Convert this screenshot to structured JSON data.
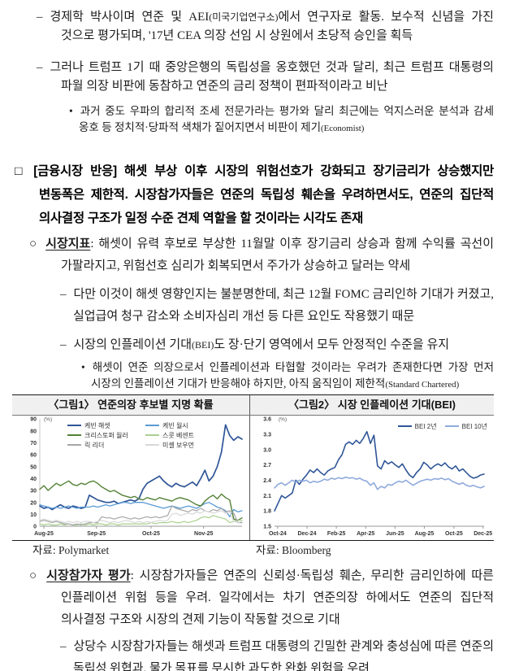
{
  "content": {
    "para1": {
      "marker": "–",
      "segments": [
        {
          "t": "경제학 박사이며 연준 및 AEI",
          "s": ""
        },
        {
          "t": "(미국기업연구소)",
          "s": "sm"
        },
        {
          "t": "에서 연구자로 활동. 보수적 신념을 가진 것으로 평가되며, '17년 CEA 의장 선임 시 상원에서 초당적 승인을 획득",
          "s": ""
        }
      ]
    },
    "para2": {
      "marker": "–",
      "segments": [
        {
          "t": "그러나 트럼프 1기 때 중앙은행의 독립성을 옹호했던 것과 달리, 최근 트럼프 대통령의 파월 의장 비판에 동참하고 연준의 금리 정책이 편파적이라고 비난",
          "s": ""
        }
      ]
    },
    "bullet1": {
      "marker": "•",
      "segments": [
        {
          "t": "과거 중도 우파의 합리적 조세 전문가라는 평가와 달리 최근에는 억지스러운 분석과 감세 옹호 등 정치적·당파적 색채가 짙어지면서 비판이 제기",
          "s": ""
        },
        {
          "t": "(Economist)",
          "s": "sm"
        }
      ]
    },
    "heading": {
      "marker": "□",
      "segments": [
        {
          "t": "[금융시장 반응] 해셋 부상 이후 시장의 위험선호가 강화되고 장기금리가 상승했지만 변동폭은 제한적. 시장참가자들은 연준의 독립성 훼손을 우려하면서도, 연준의 집단적 의사결정 구조가 일정 수준 견제 역할을 할 것이라는 시각도 존재",
          "s": ""
        }
      ]
    },
    "circle1": {
      "marker": "○",
      "segments": [
        {
          "t": "시장지표",
          "s": "bu"
        },
        {
          "t": ": 해셋이 유력 후보로 부상한 11월말 이후 장기금리 상승과 함께 수익률 곡선이 가팔라지고, 위험선호 심리가 회복되면서 주가가 상승하고 달러는 약세",
          "s": ""
        }
      ]
    },
    "dash3": {
      "marker": "–",
      "segments": [
        {
          "t": "다만 이것이 해셋 영향인지는 불분명한데, 최근 12월 FOMC 금리인하 기대가 커졌고, 실업급여 청구 감소와 소비자심리 개선 등 다른 요인도 작용했기 때문",
          "s": ""
        }
      ]
    },
    "dash4": {
      "marker": "–",
      "segments": [
        {
          "t": "시장의 인플레이션 기대",
          "s": ""
        },
        {
          "t": "(BEI)",
          "s": "sm"
        },
        {
          "t": "도 장·단기 영역에서 모두 안정적인 수준을 유지",
          "s": ""
        }
      ]
    },
    "bullet2": {
      "marker": "•",
      "segments": [
        {
          "t": "해셋이 연준 의장으로서 인플레이션과 타협할 것이라는 우려가 존재한다면 가장 먼저 시장의 인플레이션 기대가 반응해야 하지만, 아직 움직임이 제한적",
          "s": ""
        },
        {
          "t": "(Standard Chartered)",
          "s": "sm"
        }
      ]
    },
    "circle2": {
      "marker": "○",
      "segments": [
        {
          "t": "시장참가자 평가",
          "s": "bu"
        },
        {
          "t": ": 시장참가자들은 연준의 신뢰성·독립성 훼손, 무리한 금리인하에 따른 인플레이션 위험 등을 우려. 일각에서는 차기 연준의장 하에서도 연준의 집단적 의사결정 구조와 시장의 견제 기능이 작동할 것으로 기대",
          "s": ""
        }
      ]
    },
    "dash5": {
      "marker": "–",
      "segments": [
        {
          "t": "상당수 시장참가자들는 해셋과 트럼프 대통령의 긴밀한 관계와 충성심에 따른 연준의 독립성 위협과, 물가 목표를 무시한 과도한 완화 위험을 우려",
          "s": ""
        }
      ]
    }
  },
  "figures": {
    "fig1_title": "〈그림1〉 연준의장 후보별 지명 확률",
    "fig2_title": "〈그림2〉 시장 인플레이션 기대(BEI)",
    "fig1_source": "자료: Polymarket",
    "fig2_source": "자료: Bloomberg"
  },
  "chart_data": [
    {
      "type": "line",
      "title": "〈그림1〉 연준의장 후보별 지명 확률",
      "unit": "(%)",
      "ylim": [
        0,
        90
      ],
      "yticks": [
        "0",
        "10",
        "20",
        "30",
        "40",
        "50",
        "60",
        "70",
        "80",
        "90"
      ],
      "xticks": [
        {
          "label": "Aug-25",
          "pos": 0.02
        },
        {
          "label": "Sep-25",
          "pos": 0.28
        },
        {
          "label": "Oct-25",
          "pos": 0.55
        },
        {
          "label": "Nov-25",
          "pos": 0.81
        }
      ],
      "grid": false,
      "legend_position": "top-left-two-columns",
      "source": "Polymarket",
      "series": [
        {
          "name": "케빈 해셋",
          "color": "#2F5597",
          "width": 1.7,
          "values": [
            17,
            15,
            16,
            14,
            16,
            18,
            16,
            15,
            17,
            16,
            15,
            16,
            26,
            24,
            22,
            21,
            20,
            20,
            21,
            19,
            20,
            21,
            22,
            21,
            23,
            31,
            36,
            38,
            40,
            42,
            38,
            35,
            33,
            36,
            34,
            33,
            35,
            37,
            34,
            40,
            47,
            38,
            42,
            50,
            62,
            85,
            76,
            72,
            75,
            73
          ]
        },
        {
          "name": "케빈 월시",
          "color": "#5B9BD5",
          "width": 1.3,
          "values": [
            18,
            17,
            16,
            15,
            16,
            15,
            16,
            17,
            16,
            15,
            16,
            16,
            16,
            17,
            16,
            17,
            18,
            17,
            18,
            19,
            20,
            20,
            19,
            20,
            20,
            20,
            19,
            18,
            17,
            16,
            15,
            16,
            17,
            16,
            15,
            16,
            17,
            16,
            15,
            17,
            19,
            20,
            18,
            16,
            15,
            13,
            8,
            14,
            12,
            13
          ]
        },
        {
          "name": "크리스토퍼 월러",
          "color": "#538135",
          "width": 1.4,
          "values": [
            31,
            34,
            30,
            33,
            36,
            34,
            36,
            38,
            35,
            34,
            36,
            35,
            37,
            38,
            36,
            33,
            31,
            29,
            30,
            28,
            26,
            25,
            24,
            25,
            23,
            22,
            24,
            23,
            22,
            24,
            23,
            22,
            21,
            23,
            24,
            23,
            22,
            20,
            18,
            17,
            21,
            24,
            26,
            23,
            27,
            24,
            22,
            6,
            5,
            7
          ]
        },
        {
          "name": "스콧 베센트",
          "color": "#A9D18E",
          "width": 1.2,
          "values": [
            2,
            1,
            2,
            1,
            1,
            2,
            1,
            2,
            1,
            1,
            2,
            1,
            2,
            1,
            2,
            2,
            1,
            2,
            2,
            1,
            2,
            2,
            2,
            2,
            2,
            2,
            2,
            3,
            2,
            3,
            3,
            3,
            4,
            3,
            3,
            4,
            3,
            4,
            5,
            7,
            8,
            7,
            9,
            8,
            7,
            6,
            3,
            4,
            5,
            5
          ]
        },
        {
          "name": "릭 리더",
          "color": "#A6A6A6",
          "width": 1.2,
          "values": [
            4,
            5,
            4,
            3,
            4,
            3,
            2,
            2,
            1,
            2,
            1,
            2,
            3,
            3,
            3,
            8,
            7,
            7,
            6,
            7,
            8,
            7,
            6,
            7,
            6,
            7,
            8,
            7,
            8,
            7,
            8,
            9,
            17,
            15,
            14,
            13,
            12,
            14,
            13,
            15,
            13,
            12,
            14,
            13,
            15,
            12,
            13,
            11,
            3,
            3
          ]
        },
        {
          "name": "미셸 보우먼",
          "color": "#D8D8D8",
          "width": 1.2,
          "values": [
            5,
            6,
            5,
            4,
            5,
            4,
            3,
            4,
            3,
            4,
            3,
            4,
            4,
            3,
            4,
            5,
            4,
            3,
            4,
            3,
            4,
            5,
            4,
            3,
            4,
            3,
            4,
            3,
            4,
            5,
            4,
            5,
            10,
            11,
            9,
            10,
            11,
            10,
            12,
            11,
            13,
            12,
            11,
            12,
            13,
            11,
            12,
            4,
            3,
            4
          ]
        }
      ]
    },
    {
      "type": "line",
      "title": "〈그림2〉 시장 인플레이션 기대(BEI)",
      "unit": "(%)",
      "ylim": [
        1.5,
        3.6
      ],
      "yticks": [
        "1.5",
        "1.8",
        "2.1",
        "2.4",
        "2.7",
        "3.0",
        "3.3",
        "3.6"
      ],
      "xticks": [
        {
          "label": "Oct-24",
          "pos": 0.015
        },
        {
          "label": "Dec-24",
          "pos": 0.155
        },
        {
          "label": "Feb-25",
          "pos": 0.295
        },
        {
          "label": "Apr-25",
          "pos": 0.435
        },
        {
          "label": "Jun-25",
          "pos": 0.575
        },
        {
          "label": "Aug-25",
          "pos": 0.715
        },
        {
          "label": "Oct-25",
          "pos": 0.856
        },
        {
          "label": "Dec-25",
          "pos": 0.995
        }
      ],
      "grid": false,
      "legend_position": "top-right-row",
      "source": "Bloomberg",
      "series": [
        {
          "name": "BEI 2년",
          "color": "#2F5597",
          "width": 1.6,
          "values": [
            1.8,
            1.95,
            2.1,
            2.05,
            2.1,
            2.15,
            2.4,
            2.32,
            2.42,
            2.5,
            2.6,
            2.55,
            2.62,
            2.55,
            2.5,
            2.58,
            2.62,
            2.65,
            2.8,
            2.9,
            3.1,
            3.15,
            3.1,
            3.18,
            3.12,
            3.22,
            3.35,
            3.12,
            3.28,
            2.68,
            2.62,
            2.78,
            2.72,
            2.76,
            2.7,
            2.65,
            2.72,
            2.6,
            2.5,
            2.45,
            2.55,
            2.62,
            2.75,
            2.7,
            2.62,
            2.68,
            2.72,
            2.68,
            2.74,
            2.66,
            2.62,
            2.68,
            2.58,
            2.62,
            2.55,
            2.48,
            2.44,
            2.46,
            2.5,
            2.52
          ]
        },
        {
          "name": "BEI 10년",
          "color": "#8FAADC",
          "width": 1.6,
          "values": [
            2.25,
            2.32,
            2.35,
            2.3,
            2.35,
            2.4,
            2.36,
            2.4,
            2.38,
            2.4,
            2.35,
            2.38,
            2.36,
            2.38,
            2.42,
            2.4,
            2.44,
            2.42,
            2.45,
            2.43,
            2.46,
            2.44,
            2.45,
            2.42,
            2.44,
            2.4,
            2.38,
            2.3,
            2.35,
            2.22,
            2.28,
            2.25,
            2.32,
            2.3,
            2.35,
            2.38,
            2.36,
            2.4,
            2.35,
            2.3,
            2.34,
            2.38,
            2.4,
            2.42,
            2.4,
            2.43,
            2.42,
            2.44,
            2.41,
            2.43,
            2.38,
            2.35,
            2.32,
            2.35,
            2.3,
            2.28,
            2.3,
            2.27,
            2.25,
            2.28
          ]
        }
      ]
    }
  ]
}
